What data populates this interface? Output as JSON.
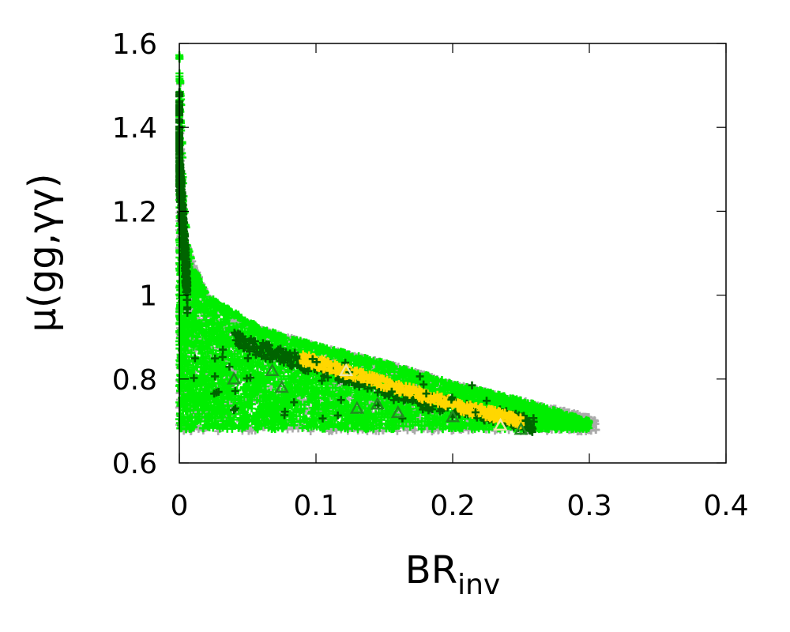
{
  "chart_data": {
    "type": "scatter",
    "xlabel": {
      "main": "BR",
      "sub": "inv"
    },
    "ylabel": "μ(gg,γγ)",
    "xlim": [
      0,
      0.4
    ],
    "ylim": [
      0.6,
      1.6
    ],
    "x_ticks": [
      "0",
      "0.1",
      "0.2",
      "0.3",
      "0.4"
    ],
    "y_ticks": [
      "0.6",
      "0.8",
      "1",
      "1.2",
      "1.4",
      "1.6"
    ],
    "x_tick_values": [
      0,
      0.1,
      0.2,
      0.3,
      0.4
    ],
    "y_tick_values": [
      0.6,
      0.8,
      1.0,
      1.2,
      1.4,
      1.6
    ],
    "grid": false,
    "legend": "none",
    "colors": {
      "gray": "#aaaaaa",
      "light_green": "#00ee00",
      "dark_green": "#006400",
      "yellow": "#ffd700",
      "triangle_yellow": "#eee8aa",
      "triangle_green": "#228b22"
    },
    "regions": [
      {
        "color": "gray",
        "envelope_x": [
          0,
          0.003,
          0.01,
          0.02,
          0.04,
          0.06,
          0.1,
          0.15,
          0.2,
          0.25,
          0.3,
          0.305
        ],
        "envelope_upper": [
          1.6,
          1.15,
          1.08,
          1.0,
          0.95,
          0.92,
          0.88,
          0.84,
          0.79,
          0.75,
          0.71,
          0.7
        ],
        "lower": 0.675
      },
      {
        "color": "light_green",
        "envelope_x": [
          0,
          0.001,
          0.003,
          0.006,
          0.01,
          0.02,
          0.04,
          0.06,
          0.1,
          0.15,
          0.2,
          0.25,
          0.28,
          0.3
        ],
        "envelope_upper": [
          1.59,
          1.5,
          1.25,
          1.12,
          1.07,
          1.0,
          0.96,
          0.92,
          0.88,
          0.84,
          0.79,
          0.75,
          0.72,
          0.7
        ],
        "lower": 0.68
      }
    ],
    "bands": [
      {
        "color": "dark_green",
        "marker": "plus",
        "x": [
          0.04,
          0.06,
          0.08,
          0.1,
          0.13,
          0.16,
          0.19,
          0.22,
          0.25,
          0.26
        ],
        "y": [
          0.895,
          0.87,
          0.85,
          0.83,
          0.8,
          0.77,
          0.74,
          0.72,
          0.7,
          0.69
        ],
        "spread": 0.018
      },
      {
        "color": "dark_green",
        "marker": "plus",
        "x": [
          0.0,
          0.0,
          0.002,
          0.004,
          0.006
        ],
        "y": [
          1.45,
          1.3,
          1.2,
          1.1,
          1.0
        ],
        "spread": 0.05
      },
      {
        "color": "yellow",
        "marker": "plus",
        "x": [
          0.09,
          0.11,
          0.13,
          0.15,
          0.17,
          0.19,
          0.21,
          0.23,
          0.25
        ],
        "y": [
          0.85,
          0.83,
          0.81,
          0.79,
          0.77,
          0.75,
          0.73,
          0.715,
          0.7
        ],
        "spread": 0.012
      }
    ],
    "triangles": [
      {
        "x": 0.122,
        "y": 0.82,
        "color": "triangle_yellow"
      },
      {
        "x": 0.235,
        "y": 0.69,
        "color": "triangle_yellow"
      },
      {
        "x": 0.04,
        "y": 0.8,
        "color": "triangle_green"
      },
      {
        "x": 0.068,
        "y": 0.82,
        "color": "triangle_green"
      },
      {
        "x": 0.075,
        "y": 0.78,
        "color": "triangle_green"
      },
      {
        "x": 0.13,
        "y": 0.73,
        "color": "triangle_green"
      },
      {
        "x": 0.145,
        "y": 0.74,
        "color": "triangle_green"
      },
      {
        "x": 0.16,
        "y": 0.72,
        "color": "triangle_green"
      },
      {
        "x": 0.2,
        "y": 0.71,
        "color": "triangle_green"
      },
      {
        "x": 0.25,
        "y": 0.68,
        "color": "triangle_green"
      }
    ]
  }
}
